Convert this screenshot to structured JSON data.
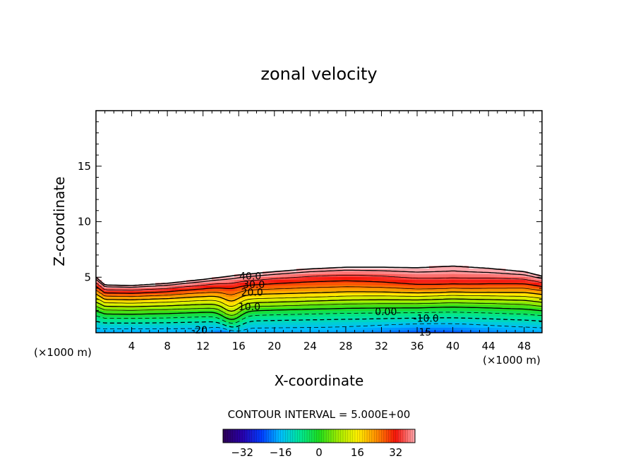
{
  "chart_data": {
    "type": "heatmap",
    "title": "zonal velocity",
    "xlabel": "X-coordinate",
    "ylabel": "Z-coordinate",
    "x_unit_left": "(×1000 m)",
    "x_unit_right": "(×1000 m)",
    "xlim": [
      0,
      50
    ],
    "ylim": [
      0,
      20
    ],
    "x_ticks": [
      4,
      8,
      12,
      16,
      20,
      24,
      28,
      32,
      36,
      40,
      44,
      48
    ],
    "y_ticks": [
      5,
      10,
      15
    ],
    "contour_interval_text": "CONTOUR INTERVAL = 5.000E+00",
    "colorbar": {
      "min": -40,
      "max": 40,
      "ticks": [
        -32,
        -16,
        0,
        16,
        32
      ]
    },
    "contour_labels": [
      {
        "text": "40.0",
        "x": 17.3,
        "z": 5.1
      },
      {
        "text": "30.0",
        "x": 17.7,
        "z": 4.35
      },
      {
        "text": "20.0",
        "x": 17.5,
        "z": 3.65
      },
      {
        "text": "10.0",
        "x": 17.2,
        "z": 2.35
      },
      {
        "text": "0.00",
        "x": 32.5,
        "z": 1.9
      },
      {
        "text": "-10.0",
        "x": 37.0,
        "z": 1.3
      },
      {
        "text": "-20",
        "x": 11.6,
        "z": 0.25
      },
      {
        "text": "-15",
        "x": 36.7,
        "z": 0.05
      }
    ],
    "jet_top": [
      [
        0,
        5.0
      ],
      [
        1,
        4.3
      ],
      [
        4,
        4.25
      ],
      [
        8,
        4.45
      ],
      [
        12,
        4.8
      ],
      [
        16,
        5.2
      ],
      [
        20,
        5.5
      ],
      [
        24,
        5.75
      ],
      [
        28,
        5.9
      ],
      [
        32,
        5.9
      ],
      [
        36,
        5.85
      ],
      [
        40,
        6.0
      ],
      [
        44,
        5.8
      ],
      [
        48,
        5.5
      ],
      [
        50,
        5.1
      ]
    ]
  }
}
